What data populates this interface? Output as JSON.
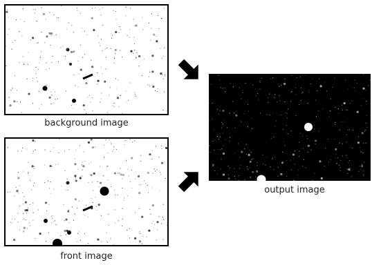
{
  "images": [
    {
      "label": "background image"
    },
    {
      "label": "front image"
    },
    {
      "label": "output image"
    }
  ]
}
